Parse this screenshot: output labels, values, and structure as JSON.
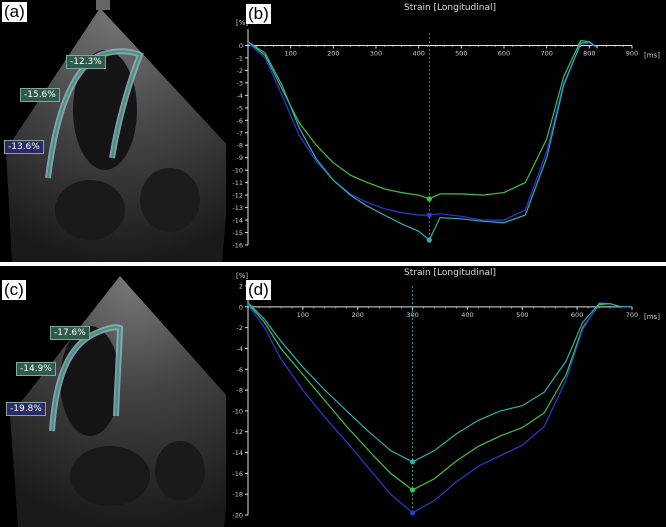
{
  "panels": {
    "a": {
      "letter": "(a)",
      "labels": {
        "top": "-12.3%",
        "mid": "-15.6%",
        "low": "-13.6%"
      }
    },
    "b": {
      "letter": "(b)"
    },
    "c": {
      "letter": "(c)",
      "labels": {
        "top": "-17.6%",
        "mid": "-14.9%",
        "low": "-19.8%"
      }
    },
    "d": {
      "letter": "(d)"
    }
  },
  "colors": {
    "green": "#3ec24a",
    "blue": "#2d3ad6",
    "teal": "#2ab0b0",
    "axis": "#e0e0e0"
  },
  "chart_data": [
    {
      "type": "line",
      "title": "Strain [Longitudinal]",
      "ylabel": "[%]",
      "xlabel": "[ms]",
      "xlim": [
        0,
        900
      ],
      "ylim": [
        -16,
        1
      ],
      "x_ticks": [
        100,
        200,
        300,
        400,
        500,
        600,
        700,
        800,
        900
      ],
      "y_ticks": [
        0,
        -1,
        -2,
        -3,
        -4,
        -5,
        -6,
        -7,
        -8,
        -9,
        -10,
        -11,
        -12,
        -13,
        -14,
        -15,
        -16
      ],
      "cursor_x": 425,
      "markers": [
        {
          "x": 425,
          "y": -12.3,
          "color": "green"
        },
        {
          "x": 425,
          "y": -13.6,
          "color": "blue"
        },
        {
          "x": 425,
          "y": -15.6,
          "color": "teal"
        }
      ],
      "series": [
        {
          "color": "green",
          "x": [
            0,
            40,
            80,
            120,
            160,
            200,
            240,
            280,
            320,
            360,
            400,
            425,
            450,
            500,
            550,
            600,
            650,
            700,
            740,
            780,
            800,
            820
          ],
          "y": [
            0.3,
            -0.8,
            -3.5,
            -6.2,
            -8.0,
            -9.4,
            -10.4,
            -11.0,
            -11.5,
            -11.8,
            -12.0,
            -12.3,
            -11.9,
            -11.9,
            -12.0,
            -11.8,
            -11.0,
            -7.5,
            -2.5,
            0.4,
            0.3,
            -0.2
          ]
        },
        {
          "color": "blue",
          "x": [
            0,
            40,
            80,
            120,
            160,
            200,
            240,
            280,
            320,
            360,
            400,
            425,
            450,
            500,
            550,
            600,
            650,
            700,
            740,
            780,
            800,
            820
          ],
          "y": [
            0.2,
            -1.0,
            -4.0,
            -7.2,
            -9.3,
            -10.8,
            -11.9,
            -12.6,
            -13.1,
            -13.4,
            -13.6,
            -13.6,
            -13.5,
            -13.7,
            -14.0,
            -14.0,
            -13.2,
            -8.5,
            -3.0,
            0.1,
            0.2,
            -0.2
          ]
        },
        {
          "color": "teal",
          "x": [
            0,
            40,
            80,
            120,
            160,
            200,
            240,
            280,
            320,
            360,
            400,
            425,
            450,
            500,
            550,
            600,
            650,
            700,
            740,
            780,
            800,
            820
          ],
          "y": [
            0.3,
            -0.6,
            -3.2,
            -6.6,
            -9.1,
            -10.8,
            -12.0,
            -12.9,
            -13.6,
            -14.3,
            -14.9,
            -15.6,
            -13.8,
            -13.9,
            -14.1,
            -14.2,
            -13.6,
            -9.0,
            -3.2,
            0.2,
            0.3,
            -0.2
          ]
        }
      ]
    },
    {
      "type": "line",
      "title": "Strain [Longitudinal]",
      "ylabel": "[%]",
      "xlabel": "[ms]",
      "xlim": [
        0,
        700
      ],
      "ylim": [
        -20,
        2
      ],
      "x_ticks": [
        100,
        200,
        300,
        400,
        500,
        600,
        700
      ],
      "y_ticks": [
        2,
        0,
        -2,
        -4,
        -6,
        -8,
        -10,
        -12,
        -14,
        -16,
        -18,
        -20
      ],
      "cursor_x": 300,
      "markers": [
        {
          "x": 300,
          "y": -14.9,
          "color": "teal"
        },
        {
          "x": 300,
          "y": -17.6,
          "color": "green"
        },
        {
          "x": 300,
          "y": -19.8,
          "color": "blue"
        }
      ],
      "series": [
        {
          "color": "green",
          "x": [
            0,
            30,
            60,
            100,
            140,
            180,
            220,
            260,
            300,
            340,
            380,
            420,
            460,
            500,
            540,
            580,
            610,
            640,
            660,
            680,
            700
          ],
          "y": [
            0.3,
            -1.5,
            -4.0,
            -6.5,
            -9.0,
            -11.5,
            -13.8,
            -16.0,
            -17.6,
            -16.5,
            -14.8,
            -13.4,
            -12.4,
            -11.6,
            -10.2,
            -6.5,
            -2.0,
            0.2,
            0.3,
            0.0,
            0.0
          ]
        },
        {
          "color": "blue",
          "x": [
            0,
            30,
            60,
            100,
            140,
            180,
            220,
            260,
            300,
            340,
            380,
            420,
            460,
            500,
            540,
            580,
            610,
            640,
            660,
            680,
            700
          ],
          "y": [
            0.2,
            -2.0,
            -5.0,
            -8.0,
            -10.6,
            -13.0,
            -15.5,
            -18.0,
            -19.8,
            -18.6,
            -16.8,
            -15.3,
            -14.3,
            -13.3,
            -11.5,
            -7.0,
            -2.2,
            0.4,
            0.3,
            0.0,
            0.0
          ]
        },
        {
          "color": "teal",
          "x": [
            0,
            30,
            60,
            100,
            140,
            180,
            220,
            260,
            300,
            340,
            380,
            420,
            460,
            500,
            540,
            580,
            610,
            640,
            660,
            680,
            700
          ],
          "y": [
            0.4,
            -1.2,
            -3.3,
            -5.8,
            -8.0,
            -10.0,
            -12.0,
            -13.8,
            -14.9,
            -13.8,
            -12.2,
            -10.9,
            -10.0,
            -9.5,
            -8.2,
            -5.2,
            -1.5,
            0.3,
            0.3,
            0.0,
            0.0
          ]
        }
      ]
    }
  ]
}
